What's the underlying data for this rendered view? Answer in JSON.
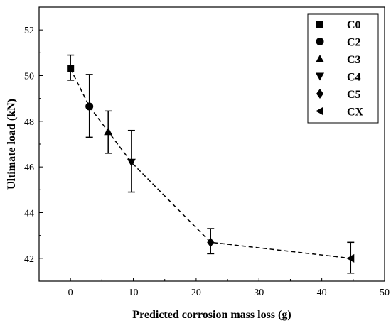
{
  "chart_data": {
    "type": "scatter",
    "xlabel": "Predicted corrosion mass loss (g)",
    "ylabel": "Ultimate load (kN)",
    "xlim": [
      -5,
      50
    ],
    "ylim": [
      41,
      53
    ],
    "xticks": [
      0,
      10,
      20,
      30,
      40,
      50
    ],
    "yticks": [
      42,
      44,
      46,
      48,
      50,
      52
    ],
    "connecting_line": "dashed",
    "grid": false,
    "legend_position": "top-right",
    "series": [
      {
        "name": "C0",
        "marker": "square",
        "x": 0,
        "y": 50.3,
        "err_low": 49.8,
        "err_high": 50.9
      },
      {
        "name": "C2",
        "marker": "circle",
        "x": 3.0,
        "y": 48.65,
        "err_low": 47.3,
        "err_high": 50.05
      },
      {
        "name": "C3",
        "marker": "triangle-up",
        "x": 6.0,
        "y": 47.55,
        "err_low": 46.6,
        "err_high": 48.45
      },
      {
        "name": "C4",
        "marker": "triangle-down",
        "x": 9.7,
        "y": 46.2,
        "err_low": 44.9,
        "err_high": 47.6
      },
      {
        "name": "C5",
        "marker": "diamond",
        "x": 22.3,
        "y": 42.7,
        "err_low": 42.2,
        "err_high": 43.3
      },
      {
        "name": "CX",
        "marker": "triangle-left",
        "x": 44.6,
        "y": 42.0,
        "err_low": 41.35,
        "err_high": 42.7
      }
    ]
  }
}
